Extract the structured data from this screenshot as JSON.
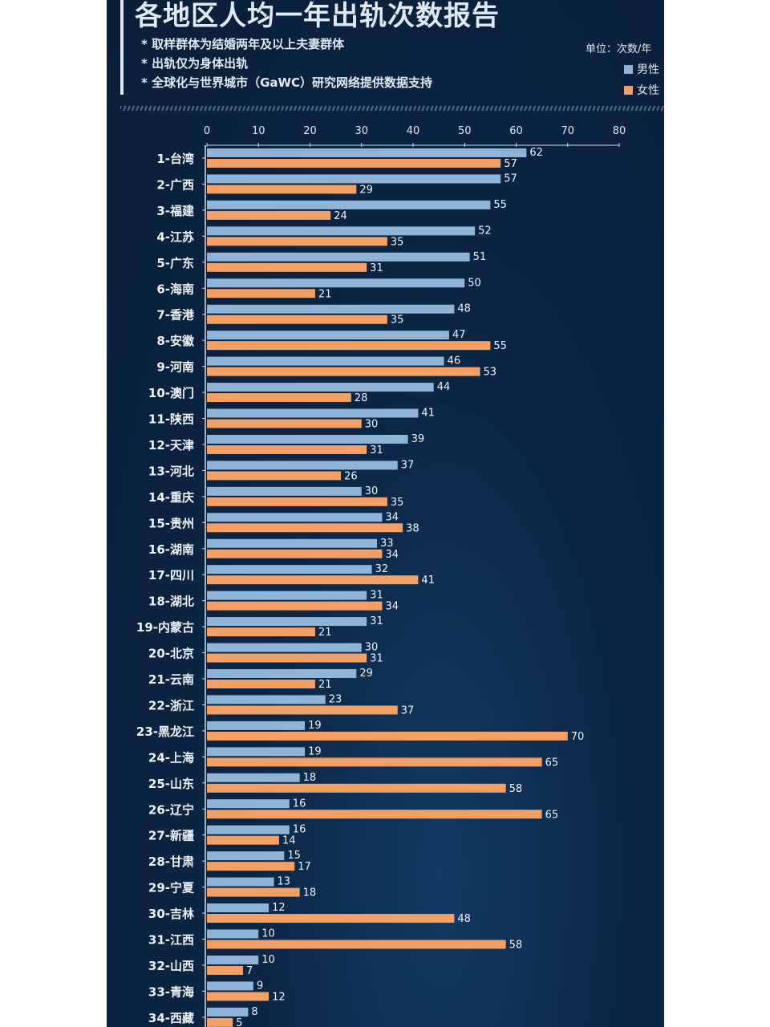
{
  "chart_data": {
    "type": "bar",
    "orientation": "horizontal",
    "title": "各地区人均一年出轨次数报告",
    "notes": [
      "* 取样群体为结婚两年及以上夫妻群体",
      "* 出轨仅为身体出轨",
      "* 全球化与世界城市（GaWC）研究网络提供数据支持"
    ],
    "unit": "单位：次数/年",
    "xlim": [
      0,
      80
    ],
    "xticks": [
      0,
      10,
      20,
      30,
      40,
      50,
      60,
      70,
      80
    ],
    "legend_position": "top-right",
    "categories": [
      "1-台湾",
      "2-广西",
      "3-福建",
      "4-江苏",
      "5-广东",
      "6-海南",
      "7-香港",
      "8-安徽",
      "9-河南",
      "10-澳门",
      "11-陕西",
      "12-天津",
      "13-河北",
      "14-重庆",
      "15-贵州",
      "16-湖南",
      "17-四川",
      "18-湖北",
      "19-内蒙古",
      "20-北京",
      "21-云南",
      "22-浙江",
      "23-黑龙江",
      "24-上海",
      "25-山东",
      "26-辽宁",
      "27-新疆",
      "28-甘肃",
      "29-宁夏",
      "30-吉林",
      "31-江西",
      "32-山西",
      "33-青海",
      "34-西藏"
    ],
    "series": [
      {
        "name": "男性",
        "color": "#8fb4d8",
        "values": [
          62,
          57,
          55,
          52,
          51,
          50,
          48,
          47,
          46,
          44,
          41,
          39,
          37,
          30,
          34,
          33,
          32,
          31,
          31,
          30,
          29,
          23,
          19,
          19,
          18,
          16,
          16,
          15,
          13,
          12,
          10,
          10,
          9,
          8
        ]
      },
      {
        "name": "女性",
        "color": "#f2a066",
        "values": [
          57,
          29,
          24,
          35,
          31,
          21,
          35,
          55,
          53,
          28,
          30,
          31,
          26,
          35,
          38,
          34,
          41,
          34,
          21,
          31,
          21,
          37,
          70,
          65,
          58,
          65,
          14,
          17,
          18,
          48,
          58,
          7,
          12,
          5
        ]
      }
    ]
  }
}
